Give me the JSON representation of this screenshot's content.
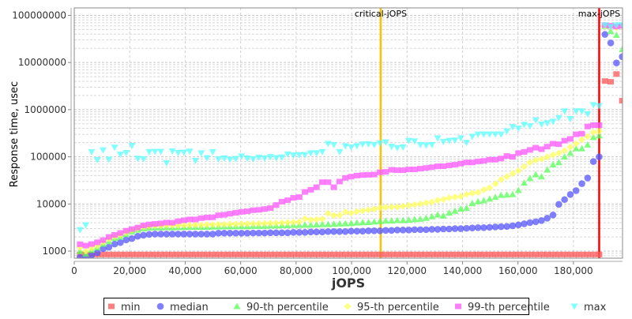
{
  "chart_data": {
    "type": "scatter",
    "xlabel": "jOPS",
    "ylabel": "Response time, usec",
    "y_scale": "log",
    "xlim": [
      0,
      197700
    ],
    "ylim": [
      708,
      144000000
    ],
    "grid": true,
    "legend_position": "bottom",
    "x_ticks": [
      "0",
      "20,000",
      "40,000",
      "60,000",
      "80,000",
      "100,000",
      "120,000",
      "140,000",
      "160,000",
      "180,000"
    ],
    "x_tick_values": [
      0,
      20000,
      40000,
      60000,
      80000,
      100000,
      120000,
      140000,
      160000,
      180000
    ],
    "y_ticks": [
      "1000",
      "10000",
      "100000",
      "1000000",
      "10000000",
      "100000000"
    ],
    "y_tick_values": [
      1000,
      10000,
      100000,
      1000000,
      10000000,
      100000000
    ],
    "reference_lines": [
      {
        "label": "critical-jOPS",
        "x": 110500,
        "color": "#ffc000"
      },
      {
        "label": "max-jOPS",
        "x": 189280,
        "color": "#ff0000"
      }
    ],
    "x": [
      2080,
      4160,
      6240,
      8320,
      10400,
      12480,
      14560,
      16640,
      18720,
      20800,
      22880,
      24960,
      27040,
      29120,
      31200,
      33280,
      35360,
      37440,
      39520,
      41600,
      43680,
      45760,
      47840,
      49920,
      52000,
      54080,
      56160,
      58240,
      60320,
      62400,
      64480,
      66560,
      68640,
      70720,
      72800,
      74880,
      76960,
      79040,
      81120,
      83200,
      85280,
      87360,
      89440,
      91520,
      93600,
      95680,
      97760,
      99840,
      101920,
      104000,
      106080,
      108160,
      110240,
      112320,
      114400,
      116480,
      118560,
      120640,
      122720,
      124800,
      126880,
      128960,
      131040,
      133120,
      135200,
      137280,
      139360,
      141440,
      143520,
      145600,
      147680,
      149760,
      151840,
      153920,
      156000,
      158080,
      160160,
      162240,
      164320,
      166400,
      168480,
      170560,
      172640,
      174720,
      176800,
      178880,
      180960,
      183040,
      185120,
      187200,
      189280,
      191360,
      193440,
      195520,
      197600
    ],
    "series": [
      {
        "name": "min",
        "color": "#ff5555",
        "marker": "square",
        "values": [
          850,
          850,
          850,
          850,
          850,
          850,
          850,
          850,
          850,
          850,
          850,
          850,
          850,
          850,
          850,
          850,
          850,
          850,
          850,
          850,
          850,
          850,
          850,
          850,
          850,
          850,
          850,
          850,
          850,
          850,
          850,
          850,
          850,
          850,
          850,
          850,
          850,
          850,
          850,
          850,
          850,
          850,
          850,
          850,
          850,
          850,
          850,
          850,
          850,
          850,
          850,
          850,
          850,
          850,
          850,
          850,
          850,
          850,
          850,
          850,
          850,
          850,
          850,
          850,
          850,
          850,
          850,
          850,
          850,
          850,
          850,
          850,
          850,
          850,
          850,
          850,
          850,
          850,
          850,
          850,
          850,
          850,
          850,
          850,
          850,
          850,
          850,
          850,
          850,
          850,
          850,
          4050000,
          3900000,
          5700000,
          1550000
        ]
      },
      {
        "name": "median",
        "color": "#5555ff",
        "marker": "circle",
        "values": [
          735,
          740,
          815,
          925,
          1120,
          1210,
          1410,
          1520,
          1730,
          1850,
          2070,
          2180,
          2270,
          2300,
          2300,
          2300,
          2300,
          2300,
          2300,
          2300,
          2300,
          2300,
          2300,
          2300,
          2400,
          2400,
          2400,
          2400,
          2400,
          2400,
          2420,
          2420,
          2420,
          2450,
          2450,
          2450,
          2450,
          2500,
          2500,
          2500,
          2550,
          2550,
          2550,
          2600,
          2600,
          2600,
          2600,
          2650,
          2650,
          2650,
          2700,
          2700,
          2700,
          2750,
          2750,
          2800,
          2800,
          2800,
          2850,
          2850,
          2850,
          2900,
          2900,
          2950,
          2950,
          3000,
          3000,
          3050,
          3100,
          3150,
          3150,
          3200,
          3250,
          3300,
          3330,
          3450,
          3600,
          3800,
          4030,
          4200,
          4450,
          5000,
          5840,
          9800,
          12400,
          15900,
          19200,
          27000,
          35500,
          79400,
          100000,
          39500000,
          26000000,
          9800000,
          13300000
        ]
      },
      {
        "name": "90-th percentile",
        "color": "#55ff55",
        "marker": "triangle-up",
        "values": [
          990,
          870,
          1050,
          1200,
          1410,
          1600,
          1870,
          2000,
          2270,
          2580,
          2820,
          3000,
          3120,
          3150,
          3150,
          3200,
          3150,
          3200,
          3200,
          3250,
          3250,
          3250,
          3250,
          3300,
          3300,
          3330,
          3330,
          3350,
          3350,
          3350,
          3400,
          3400,
          3400,
          3450,
          3450,
          3500,
          3500,
          3550,
          3550,
          3600,
          3600,
          3650,
          3700,
          3700,
          3750,
          3800,
          3850,
          3900,
          4000,
          4050,
          4100,
          4200,
          4300,
          4400,
          4400,
          4500,
          4500,
          4600,
          4700,
          4800,
          5000,
          5400,
          5900,
          5600,
          6500,
          7100,
          7900,
          8200,
          10300,
          11300,
          11800,
          12800,
          14000,
          15400,
          15600,
          16000,
          19500,
          28000,
          35000,
          42000,
          38000,
          53000,
          68000,
          76000,
          100000,
          120000,
          150000,
          150000,
          180000,
          260000,
          280000,
          59000000,
          46000000,
          38000000,
          19000000
        ]
      },
      {
        "name": "95-th percentile",
        "color": "#ffff55",
        "marker": "diamond",
        "values": [
          1200,
          1000,
          1150,
          1300,
          1550,
          1800,
          2050,
          2200,
          2500,
          2800,
          3050,
          3250,
          3400,
          3450,
          3450,
          3500,
          3500,
          3500,
          3550,
          3550,
          3600,
          3600,
          3650,
          3650,
          3700,
          3700,
          3750,
          3750,
          3800,
          3800,
          3850,
          3850,
          3900,
          3900,
          3950,
          4000,
          4050,
          4100,
          4200,
          4900,
          4600,
          4700,
          4800,
          6300,
          5700,
          5800,
          6750,
          6400,
          6900,
          7200,
          7500,
          7800,
          8300,
          8500,
          8700,
          8700,
          9000,
          9300,
          9700,
          10100,
          10500,
          11000,
          12000,
          12500,
          13500,
          14000,
          14500,
          16000,
          17000,
          17600,
          20000,
          22000,
          27000,
          33000,
          38000,
          44000,
          51000,
          62000,
          76000,
          85000,
          90000,
          99000,
          110000,
          120000,
          135000,
          160000,
          190000,
          230000,
          270000,
          330000,
          350000,
          60000000,
          58000000,
          55000000,
          58000000
        ]
      },
      {
        "name": "99-th percentile",
        "color": "#ff55ff",
        "marker": "square",
        "values": [
          1400,
          1310,
          1410,
          1540,
          1710,
          2000,
          2210,
          2420,
          2710,
          2930,
          3160,
          3510,
          3690,
          3780,
          3870,
          4030,
          4000,
          4300,
          4520,
          4700,
          4700,
          5000,
          5170,
          5200,
          5780,
          5900,
          6200,
          6500,
          6800,
          7000,
          7370,
          7500,
          7800,
          8200,
          9500,
          11200,
          12000,
          13500,
          14000,
          18000,
          20000,
          22700,
          29000,
          29000,
          22700,
          29900,
          35700,
          38000,
          40000,
          41000,
          41500,
          42000,
          47000,
          48000,
          53000,
          52000,
          52000,
          54000,
          54000,
          56000,
          58000,
          60000,
          63000,
          63000,
          66000,
          68000,
          72000,
          76000,
          76000,
          80000,
          82000,
          87000,
          87000,
          92000,
          104000,
          100000,
          120000,
          127000,
          140000,
          156000,
          145000,
          165000,
          190000,
          185000,
          220000,
          240000,
          300000,
          310000,
          440000,
          470000,
          470000,
          62000000,
          60000000,
          58000000,
          60000000
        ]
      },
      {
        "name": "max",
        "color": "#55ffff",
        "marker": "triangle-down",
        "values": [
          2820,
          3550,
          127000,
          86500,
          139000,
          88000,
          158000,
          112000,
          122000,
          172000,
          92000,
          90000,
          127000,
          129000,
          129000,
          74000,
          132000,
          122000,
          124000,
          130000,
          83000,
          120000,
          95000,
          127000,
          90000,
          94000,
          88000,
          91000,
          103000,
          93000,
          90000,
          97000,
          93000,
          100000,
          95000,
          98000,
          114000,
          108000,
          110000,
          110000,
          120000,
          120000,
          127000,
          190000,
          180000,
          127000,
          170000,
          160000,
          170000,
          185000,
          185000,
          180000,
          195000,
          205000,
          165000,
          155000,
          160000,
          220000,
          215000,
          180000,
          175000,
          180000,
          250000,
          210000,
          220000,
          225000,
          250000,
          200000,
          270000,
          300000,
          300000,
          300000,
          300000,
          300000,
          350000,
          430000,
          400000,
          480000,
          450000,
          600000,
          490000,
          520000,
          560000,
          670000,
          930000,
          640000,
          930000,
          930000,
          810000,
          1260000,
          1200000,
          62000000,
          57000000,
          62000000,
          62000000
        ]
      }
    ]
  }
}
